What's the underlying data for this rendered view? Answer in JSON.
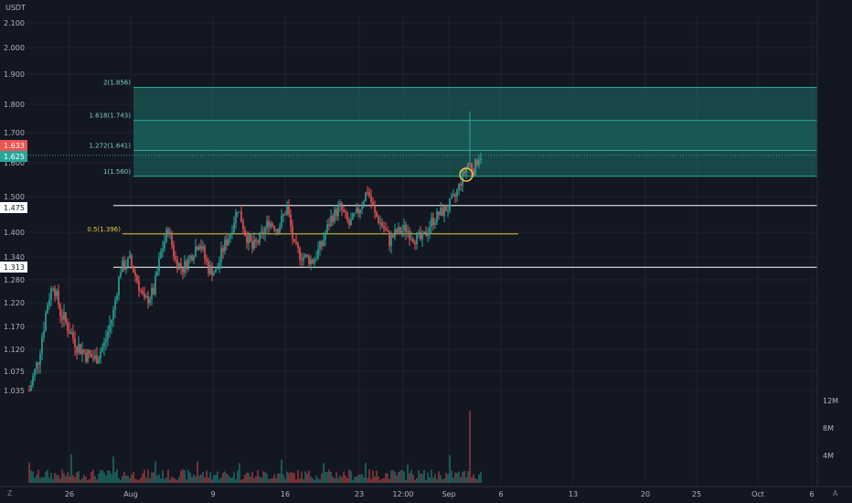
{
  "currency_label": "USDT",
  "price_badges": {
    "last": "1.633",
    "current": "1.625",
    "upper_level": "1.475",
    "lower_level": "1.313"
  },
  "bottom_left_label": "Z",
  "bottom_right_label": "A",
  "colors": {
    "background": "#131722",
    "grid": "#1f2330",
    "up": "#26a69a",
    "down": "#ef5350",
    "fib_fill": "#1b6f66",
    "fib_line": "#2aa89a",
    "level": "#ffffff",
    "fib_mid": "#e8c93a"
  },
  "chart_data": {
    "type": "candlestick",
    "y_ticks": [
      "2.100",
      "2.000",
      "1.900",
      "1.800",
      "1.700",
      "1.600",
      "1.500",
      "1.400",
      "1.340",
      "1.280",
      "1.220",
      "1.170",
      "1.120",
      "1.075",
      "1.035"
    ],
    "x_ticks": [
      "26",
      "Aug",
      "9",
      "16",
      "23",
      "12:00",
      "Sep",
      "6",
      "13",
      "20",
      "25",
      "Oct",
      "6"
    ],
    "volume_ticks": [
      "12M",
      "8M",
      "4M"
    ],
    "fib_levels": [
      {
        "label": "2(1.856)",
        "value": 1.856
      },
      {
        "label": "1.618(1.743)",
        "value": 1.743
      },
      {
        "label": "1.272(1.641)",
        "value": 1.641
      },
      {
        "label": "1(1.560)",
        "value": 1.56
      }
    ],
    "fib_mid": {
      "label": "0.5(1.396)",
      "value": 1.396
    },
    "horizontal_levels": [
      1.475,
      1.313
    ],
    "price_path": [
      [
        0,
        1.035
      ],
      [
        10,
        1.1
      ],
      [
        20,
        1.22
      ],
      [
        26,
        1.27
      ],
      [
        34,
        1.2
      ],
      [
        42,
        1.17
      ],
      [
        52,
        1.13
      ],
      [
        62,
        1.11
      ],
      [
        72,
        1.1
      ],
      [
        82,
        1.13
      ],
      [
        92,
        1.2
      ],
      [
        100,
        1.31
      ],
      [
        110,
        1.33
      ],
      [
        118,
        1.28
      ],
      [
        126,
        1.22
      ],
      [
        136,
        1.25
      ],
      [
        144,
        1.35
      ],
      [
        152,
        1.41
      ],
      [
        160,
        1.33
      ],
      [
        168,
        1.31
      ],
      [
        176,
        1.34
      ],
      [
        186,
        1.38
      ],
      [
        196,
        1.31
      ],
      [
        204,
        1.3
      ],
      [
        212,
        1.36
      ],
      [
        220,
        1.4
      ],
      [
        228,
        1.47
      ],
      [
        236,
        1.4
      ],
      [
        244,
        1.36
      ],
      [
        254,
        1.39
      ],
      [
        262,
        1.43
      ],
      [
        272,
        1.41
      ],
      [
        282,
        1.47
      ],
      [
        290,
        1.36
      ],
      [
        300,
        1.34
      ],
      [
        310,
        1.33
      ],
      [
        320,
        1.37
      ],
      [
        330,
        1.44
      ],
      [
        340,
        1.47
      ],
      [
        350,
        1.42
      ],
      [
        360,
        1.46
      ],
      [
        370,
        1.52
      ],
      [
        378,
        1.45
      ],
      [
        386,
        1.42
      ],
      [
        394,
        1.38
      ],
      [
        402,
        1.4
      ],
      [
        412,
        1.41
      ],
      [
        420,
        1.39
      ],
      [
        430,
        1.38
      ],
      [
        440,
        1.43
      ],
      [
        448,
        1.45
      ],
      [
        458,
        1.47
      ],
      [
        466,
        1.5
      ],
      [
        474,
        1.56
      ],
      [
        480,
        1.6
      ],
      [
        486,
        1.58
      ],
      [
        492,
        1.62
      ],
      [
        494,
        1.625
      ]
    ],
    "volume_spike_index": 482,
    "volume_spike_value": 10.5
  }
}
